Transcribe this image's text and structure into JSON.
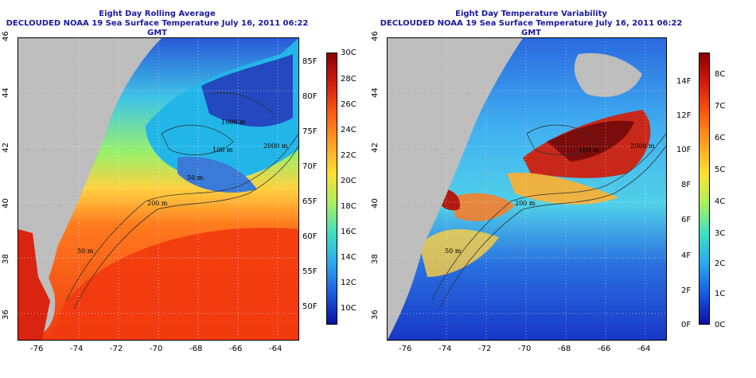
{
  "left": {
    "title": "Eight Day Rolling Average",
    "subtitle": "DECLOUDED NOAA 19 Sea Surface Temperature July 16, 2011 06:22 GMT",
    "contour_labels": [
      "1000 m",
      "100 m",
      "2000 m",
      "50 m",
      "200 m",
      "50 m"
    ],
    "colorbar": {
      "c_labels": [
        "30C",
        "28C",
        "26C",
        "24C",
        "22C",
        "20C",
        "18C",
        "16C",
        "14C",
        "12C",
        "10C"
      ],
      "f_labels": [
        "85F",
        "80F",
        "75F",
        "70F",
        "65F",
        "60F",
        "55F",
        "50F"
      ]
    }
  },
  "right": {
    "title": "Eight Day Temperature Variability",
    "subtitle": "DECLOUDED NOAA 19 Sea Surface Temperature July 16, 2011 06:22 GMT",
    "contour_labels": [
      "2000 m",
      "100 m",
      "200 m",
      "50 m"
    ],
    "colorbar": {
      "c_labels": [
        "8C",
        "7C",
        "6C",
        "5C",
        "4C",
        "3C",
        "2C",
        "1C",
        "0C"
      ],
      "f_labels": [
        "14F",
        "12F",
        "10F",
        "8F",
        "6F",
        "4F",
        "2F",
        "0F"
      ]
    }
  },
  "axes": {
    "x_ticks": [
      "-76",
      "-74",
      "-72",
      "-70",
      "-68",
      "-66",
      "-64"
    ],
    "y_ticks": [
      "46",
      "44",
      "42",
      "40",
      "38",
      "36"
    ]
  }
}
